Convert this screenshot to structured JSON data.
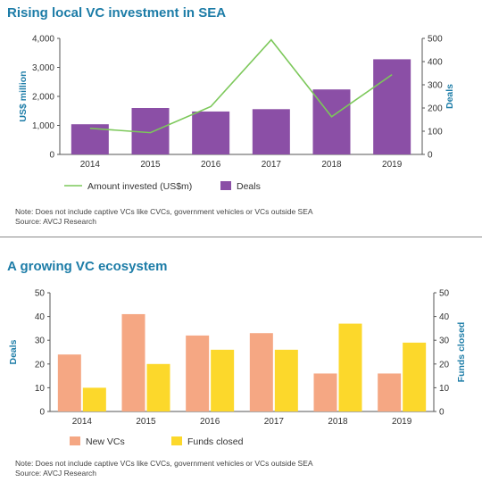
{
  "chart_data": [
    {
      "type": "bar",
      "title": "Rising local VC investment in SEA",
      "categories": [
        "2014",
        "2015",
        "2016",
        "2017",
        "2018",
        "2019"
      ],
      "series": [
        {
          "name": "Deals",
          "kind": "bar",
          "axis": "right",
          "color": "#8b4fa6",
          "values": [
            130,
            200,
            185,
            195,
            280,
            410
          ]
        },
        {
          "name": "Amount invested (US$m)",
          "kind": "line",
          "axis": "left",
          "color": "#7cc85a",
          "values": [
            900,
            750,
            1650,
            3950,
            1300,
            2750
          ]
        }
      ],
      "ylabel": "US$ million",
      "ylim": [
        0,
        4000
      ],
      "yticks": [
        "0",
        "1,000",
        "2,000",
        "3,000",
        "4,000"
      ],
      "y2label": "Deals",
      "y2lim": [
        0,
        500
      ],
      "y2ticks": [
        "0",
        "100",
        "200",
        "300",
        "400",
        "500"
      ],
      "grid": false,
      "legend": "bottom",
      "note": "Note: Does not include captive VCs like CVCs, government vehicles or VCs outside SEA",
      "source": "Source: AVCJ Research"
    },
    {
      "type": "bar",
      "title": "A growing VC ecosystem",
      "categories": [
        "2014",
        "2015",
        "2016",
        "2017",
        "2018",
        "2019"
      ],
      "series": [
        {
          "name": "New VCs",
          "axis": "left",
          "color": "#f5a783",
          "values": [
            24,
            41,
            32,
            33,
            16,
            16
          ]
        },
        {
          "name": "Funds closed",
          "axis": "right",
          "color": "#fcd82b",
          "values": [
            10,
            20,
            26,
            26,
            37,
            29
          ]
        }
      ],
      "ylabel": "Deals",
      "ylim": [
        0,
        50
      ],
      "yticks": [
        "0",
        "10",
        "20",
        "30",
        "40",
        "50"
      ],
      "y2label": "Funds closed",
      "y2lim": [
        0,
        50
      ],
      "y2ticks": [
        "0",
        "10",
        "20",
        "30",
        "40",
        "50"
      ],
      "grid": false,
      "legend": "bottom",
      "note": "Note: Does not include captive VCs like CVCs, government vehicles or VCs outside SEA",
      "source": "Source: AVCJ Research"
    }
  ]
}
